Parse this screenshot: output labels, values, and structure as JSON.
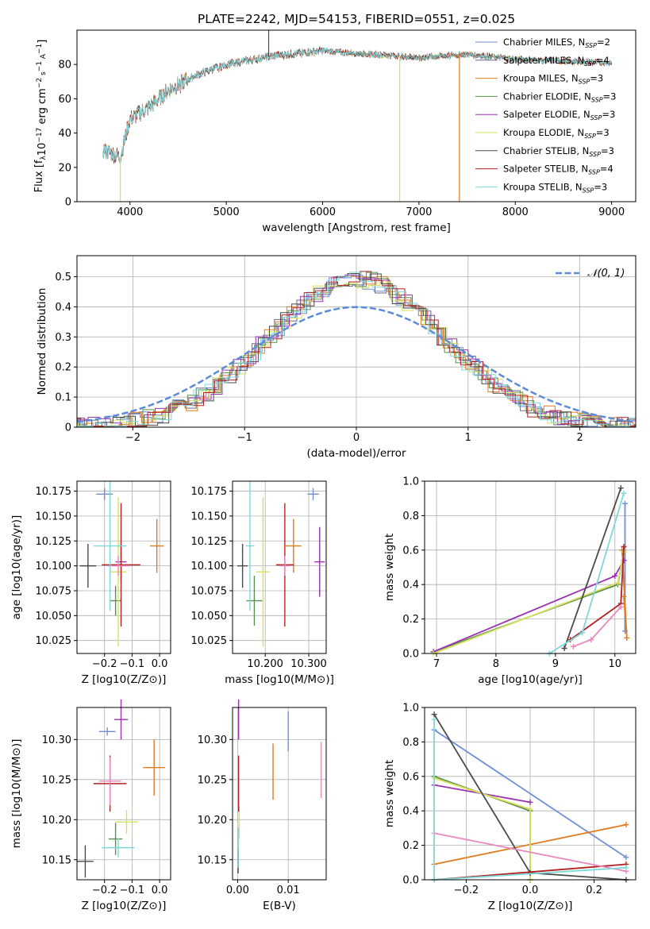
{
  "figure_title": "PLATE=2242, MJD=54153, FIBERID=0551, z=0.025",
  "models": [
    {
      "name": "Chabrier MILES",
      "nssp": "2",
      "color": "#6f8fd6"
    },
    {
      "name": "Salpeter MILES",
      "nssp": "4",
      "color": "#6a6a8a"
    },
    {
      "name": "Kroupa MILES",
      "nssp": "3",
      "color": "#e07b1e"
    },
    {
      "name": "Chabrier ELODIE",
      "nssp": "3",
      "color": "#5a8f4e"
    },
    {
      "name": "Salpeter ELODIE",
      "nssp": "3",
      "color": "#9b30b0"
    },
    {
      "name": "Kroupa ELODIE",
      "nssp": "3",
      "color": "#d8e05a"
    },
    {
      "name": "Chabrier STELIB",
      "nssp": "3",
      "color": "#4a4a4a"
    },
    {
      "name": "Salpeter STELIB",
      "nssp": "4",
      "color": "#b22222"
    },
    {
      "name": "Kroupa STELIB",
      "nssp": "3",
      "color": "#7fd8d8"
    }
  ],
  "chart_data": [
    {
      "id": "spectrum",
      "type": "line",
      "xlabel": "wavelength [Angstrom, rest frame]",
      "ylabel": "Flux [f_λ 10^-17 erg cm^-2 s^-1 A^-1]",
      "xlim": [
        3450,
        9250
      ],
      "ylim": [
        0,
        100
      ],
      "xticks": [
        4000,
        5000,
        6000,
        7000,
        8000,
        9000
      ],
      "yticks": [
        0,
        20,
        40,
        60,
        80
      ],
      "x_range_data": [
        3720,
        9000
      ],
      "continuum_anchor": [
        [
          3720,
          30
        ],
        [
          3900,
          26
        ],
        [
          4000,
          48
        ],
        [
          4200,
          55
        ],
        [
          4400,
          65
        ],
        [
          4700,
          74
        ],
        [
          5000,
          80
        ],
        [
          5500,
          85
        ],
        [
          6000,
          88
        ],
        [
          6500,
          86
        ],
        [
          7000,
          84
        ],
        [
          7500,
          86
        ],
        [
          8000,
          83
        ],
        [
          8500,
          82
        ],
        [
          9000,
          81
        ]
      ],
      "spikes": [
        [
          3900,
          0,
          "#d8e05a"
        ],
        [
          6800,
          0,
          "#d8e05a"
        ],
        [
          7420,
          0,
          "#e07b1e"
        ],
        [
          5440,
          100,
          "#4a4a4a"
        ]
      ]
    },
    {
      "id": "residuals",
      "type": "line",
      "xlabel": "(data-model)/error",
      "ylabel": "Normed distribution",
      "legend": "𝒩(0, 1)",
      "xlim": [
        -2.5,
        2.5
      ],
      "ylim": [
        0,
        0.57
      ],
      "xticks": [
        -2,
        -1,
        0,
        1,
        2
      ],
      "yticks": [
        0.0,
        0.1,
        0.2,
        0.3,
        0.4,
        0.5
      ],
      "normal_curve": {
        "mean": 0,
        "sigma": 1,
        "color": "#5b8bd9"
      }
    },
    {
      "id": "age_vs_Z",
      "type": "scatter",
      "xlabel": "Z [log10(Z/Z⊙)]",
      "ylabel": "age  [log10(age/yr)]",
      "xlim": [
        -0.3,
        0.04
      ],
      "ylim": [
        10.012,
        10.185
      ],
      "xticks": [
        -0.2,
        -0.1,
        0.0
      ],
      "yticks": [
        10.025,
        10.05,
        10.075,
        10.1,
        10.125,
        10.15,
        10.175
      ],
      "points": [
        {
          "x": -0.2,
          "y": 10.172,
          "xerr": 0.03,
          "yerr": 0.006,
          "color": "#6f8fd6"
        },
        {
          "x": -0.01,
          "y": 10.12,
          "xerr": 0.025,
          "yerr": 0.027,
          "color": "#e07b1e"
        },
        {
          "x": -0.16,
          "y": 10.065,
          "xerr": 0.02,
          "yerr": 0.015,
          "color": "#5a8f4e"
        },
        {
          "x": -0.14,
          "y": 10.104,
          "xerr": 0.02,
          "yerr": 0.02,
          "color": "#9b30b0"
        },
        {
          "x": -0.15,
          "y": 10.094,
          "xerr": 0.03,
          "yerr": 0.075,
          "color": "#d8e05a"
        },
        {
          "x": -0.26,
          "y": 10.1,
          "xerr": 0.03,
          "yerr": 0.022,
          "color": "#4a4a4a"
        },
        {
          "x": -0.14,
          "y": 10.101,
          "xerr": 0.07,
          "yerr": 0.062,
          "color": "#b22222"
        },
        {
          "x": -0.15,
          "y": 10.1,
          "xerr": 0.04,
          "yerr": 0.01,
          "color": "#e88ac0"
        },
        {
          "x": -0.18,
          "y": 10.12,
          "xerr": 0.06,
          "yerr": 0.065,
          "color": "#7fd8d8"
        }
      ]
    },
    {
      "id": "age_vs_mass",
      "type": "scatter",
      "xlabel": "mass [log10(M/M⊙)]",
      "ylabel": "",
      "xlim": [
        10.125,
        10.34
      ],
      "ylim": [
        10.012,
        10.185
      ],
      "xticks": [
        10.2,
        10.3
      ],
      "yticks": [
        10.025,
        10.05,
        10.075,
        10.1,
        10.125,
        10.15,
        10.175
      ],
      "points": [
        {
          "x": 10.31,
          "y": 10.172,
          "xerr": 0.013,
          "yerr": 0.006,
          "color": "#6f8fd6"
        },
        {
          "x": 10.265,
          "y": 10.12,
          "xerr": 0.018,
          "yerr": 0.027,
          "color": "#e07b1e"
        },
        {
          "x": 10.175,
          "y": 10.065,
          "xerr": 0.018,
          "yerr": 0.025,
          "color": "#5a8f4e"
        },
        {
          "x": 10.325,
          "y": 10.104,
          "xerr": 0.012,
          "yerr": 0.035,
          "color": "#9b30b0"
        },
        {
          "x": 10.195,
          "y": 10.094,
          "xerr": 0.015,
          "yerr": 0.075,
          "color": "#d8e05a"
        },
        {
          "x": 10.148,
          "y": 10.1,
          "xerr": 0.012,
          "yerr": 0.022,
          "color": "#4a4a4a"
        },
        {
          "x": 10.245,
          "y": 10.101,
          "xerr": 0.02,
          "yerr": 0.062,
          "color": "#b22222"
        },
        {
          "x": 10.245,
          "y": 10.1,
          "xerr": 0.012,
          "yerr": 0.01,
          "color": "#e88ac0"
        },
        {
          "x": 10.165,
          "y": 10.12,
          "xerr": 0.01,
          "yerr": 0.065,
          "color": "#7fd8d8"
        }
      ]
    },
    {
      "id": "weight_vs_age",
      "type": "line",
      "xlabel": "age  [log10(age/yr)]",
      "ylabel": "mass weight",
      "xlim": [
        6.8,
        10.35
      ],
      "ylim": [
        0,
        1.0
      ],
      "xticks": [
        7,
        8,
        9,
        10
      ],
      "yticks": [
        0.0,
        0.2,
        0.4,
        0.6,
        0.8,
        1.0
      ],
      "series": [
        {
          "color": "#6f8fd6",
          "x": [
            10.17,
            10.17
          ],
          "y": [
            0.13,
            0.87
          ]
        },
        {
          "color": "#e07b1e",
          "x": [
            10.12,
            10.2,
            10.15
          ],
          "y": [
            0.6,
            0.09,
            0.33
          ]
        },
        {
          "color": "#5a8f4e",
          "x": [
            6.95,
            10.05,
            10.15
          ],
          "y": [
            0.01,
            0.4,
            0.59
          ]
        },
        {
          "color": "#9b30b0",
          "x": [
            6.95,
            10.0,
            10.15
          ],
          "y": [
            0.01,
            0.45,
            0.54
          ]
        },
        {
          "color": "#d8e05a",
          "x": [
            6.95,
            10.05,
            10.15
          ],
          "y": [
            0.0,
            0.41,
            0.59
          ]
        },
        {
          "color": "#4a4a4a",
          "x": [
            9.15,
            10.1
          ],
          "y": [
            0.03,
            0.96
          ]
        },
        {
          "color": "#b22222",
          "x": [
            9.25,
            10.1,
            10.15
          ],
          "y": [
            0.08,
            0.29,
            0.62
          ]
        },
        {
          "color": "#e88ac0",
          "x": [
            9.3,
            9.6,
            10.1
          ],
          "y": [
            0.04,
            0.08,
            0.27
          ]
        },
        {
          "color": "#7fd8d8",
          "x": [
            8.9,
            9.45,
            10.15
          ],
          "y": [
            0.0,
            0.12,
            0.93
          ]
        }
      ]
    },
    {
      "id": "mass_vs_Z",
      "type": "scatter",
      "xlabel": "Z [log10(Z/Z⊙)]",
      "ylabel": "mass [log10(M/M⊙)]",
      "xlim": [
        -0.3,
        0.04
      ],
      "ylim": [
        10.125,
        10.34
      ],
      "xticks": [
        -0.2,
        -0.1,
        0.0
      ],
      "yticks": [
        10.15,
        10.2,
        10.25,
        10.3
      ],
      "points": [
        {
          "x": -0.19,
          "y": 10.31,
          "xerr": 0.03,
          "yerr": 0.005,
          "color": "#6f8fd6"
        },
        {
          "x": -0.02,
          "y": 10.265,
          "xerr": 0.04,
          "yerr": 0.035,
          "color": "#e07b1e"
        },
        {
          "x": -0.16,
          "y": 10.176,
          "xerr": 0.025,
          "yerr": 0.02,
          "color": "#5a8f4e"
        },
        {
          "x": -0.14,
          "y": 10.325,
          "xerr": 0.025,
          "yerr": 0.025,
          "color": "#9b30b0"
        },
        {
          "x": -0.12,
          "y": 10.197,
          "xerr": 0.04,
          "yerr": 0.015,
          "color": "#d8e05a"
        },
        {
          "x": -0.27,
          "y": 10.148,
          "xerr": 0.03,
          "yerr": 0.02,
          "color": "#4a4a4a"
        },
        {
          "x": -0.18,
          "y": 10.245,
          "xerr": 0.06,
          "yerr": 0.035,
          "color": "#b22222"
        },
        {
          "x": -0.18,
          "y": 10.248,
          "xerr": 0.04,
          "yerr": 0.03,
          "color": "#e88ac0"
        },
        {
          "x": -0.15,
          "y": 10.165,
          "xerr": 0.06,
          "yerr": 0.012,
          "color": "#7fd8d8"
        }
      ]
    },
    {
      "id": "mass_vs_EBV",
      "type": "scatter",
      "xlabel": "E(B-V)",
      "ylabel": "",
      "xlim": [
        -0.001,
        0.0175
      ],
      "ylim": [
        10.125,
        10.34
      ],
      "xticks": [
        0.0,
        0.01
      ],
      "yticks": [
        10.15,
        10.2,
        10.25,
        10.3
      ],
      "points": [
        {
          "x": 0.01,
          "y": 10.31,
          "xerr": 0,
          "yerr": 0.025,
          "color": "#6f8fd6"
        },
        {
          "x": 0.007,
          "y": 10.26,
          "xerr": 0,
          "yerr": 0.035,
          "color": "#e07b1e"
        },
        {
          "x": 0.0001,
          "y": 10.16,
          "xerr": 0,
          "yerr": 0.02,
          "color": "#5a8f4e"
        },
        {
          "x": 0.0002,
          "y": 10.325,
          "xerr": 0,
          "yerr": 0.025,
          "color": "#9b30b0"
        },
        {
          "x": 0.0003,
          "y": 10.197,
          "xerr": 0,
          "yerr": 0.02,
          "color": "#d8e05a"
        },
        {
          "x": 0.0001,
          "y": 10.148,
          "xerr": 0,
          "yerr": 0.015,
          "color": "#4a4a4a"
        },
        {
          "x": 0.0002,
          "y": 10.245,
          "xerr": 0,
          "yerr": 0.035,
          "color": "#b22222"
        },
        {
          "x": 0.0165,
          "y": 10.262,
          "xerr": 0,
          "yerr": 0.035,
          "color": "#e88ac0"
        },
        {
          "x": 0.0001,
          "y": 10.165,
          "xerr": 0,
          "yerr": 0.025,
          "color": "#7fd8d8"
        }
      ]
    },
    {
      "id": "weight_vs_Z",
      "type": "line",
      "xlabel": "Z [log10(Z/Z⊙)]",
      "ylabel": "mass weight",
      "xlim": [
        -0.33,
        0.33
      ],
      "ylim": [
        0,
        1.0
      ],
      "xticks": [
        -0.2,
        0.0,
        0.2
      ],
      "yticks": [
        0.0,
        0.2,
        0.4,
        0.6,
        0.8,
        1.0
      ],
      "series": [
        {
          "color": "#6f8fd6",
          "x": [
            -0.3,
            0.3
          ],
          "y": [
            0.87,
            0.13
          ]
        },
        {
          "color": "#e07b1e",
          "x": [
            -0.3,
            0.3
          ],
          "y": [
            0.09,
            0.32
          ]
        },
        {
          "color": "#5a8f4e",
          "x": [
            -0.3,
            0.0,
            0.0
          ],
          "y": [
            0.6,
            0.4,
            0.0
          ]
        },
        {
          "color": "#9b30b0",
          "x": [
            -0.3,
            0.0
          ],
          "y": [
            0.55,
            0.45
          ]
        },
        {
          "color": "#d8e05a",
          "x": [
            -0.3,
            0.0,
            0.0
          ],
          "y": [
            0.59,
            0.41,
            0.0
          ]
        },
        {
          "color": "#4a4a4a",
          "x": [
            -0.3,
            0.0,
            0.3
          ],
          "y": [
            0.96,
            0.04,
            0.0
          ]
        },
        {
          "color": "#b22222",
          "x": [
            -0.3,
            0.3
          ],
          "y": [
            0.0,
            0.09
          ]
        },
        {
          "color": "#e88ac0",
          "x": [
            -0.3,
            0.3
          ],
          "y": [
            0.27,
            0.05
          ]
        },
        {
          "color": "#7fd8d8",
          "x": [
            -0.3,
            -0.3,
            0.3
          ],
          "y": [
            0.93,
            0.0,
            0.07
          ]
        }
      ]
    }
  ]
}
